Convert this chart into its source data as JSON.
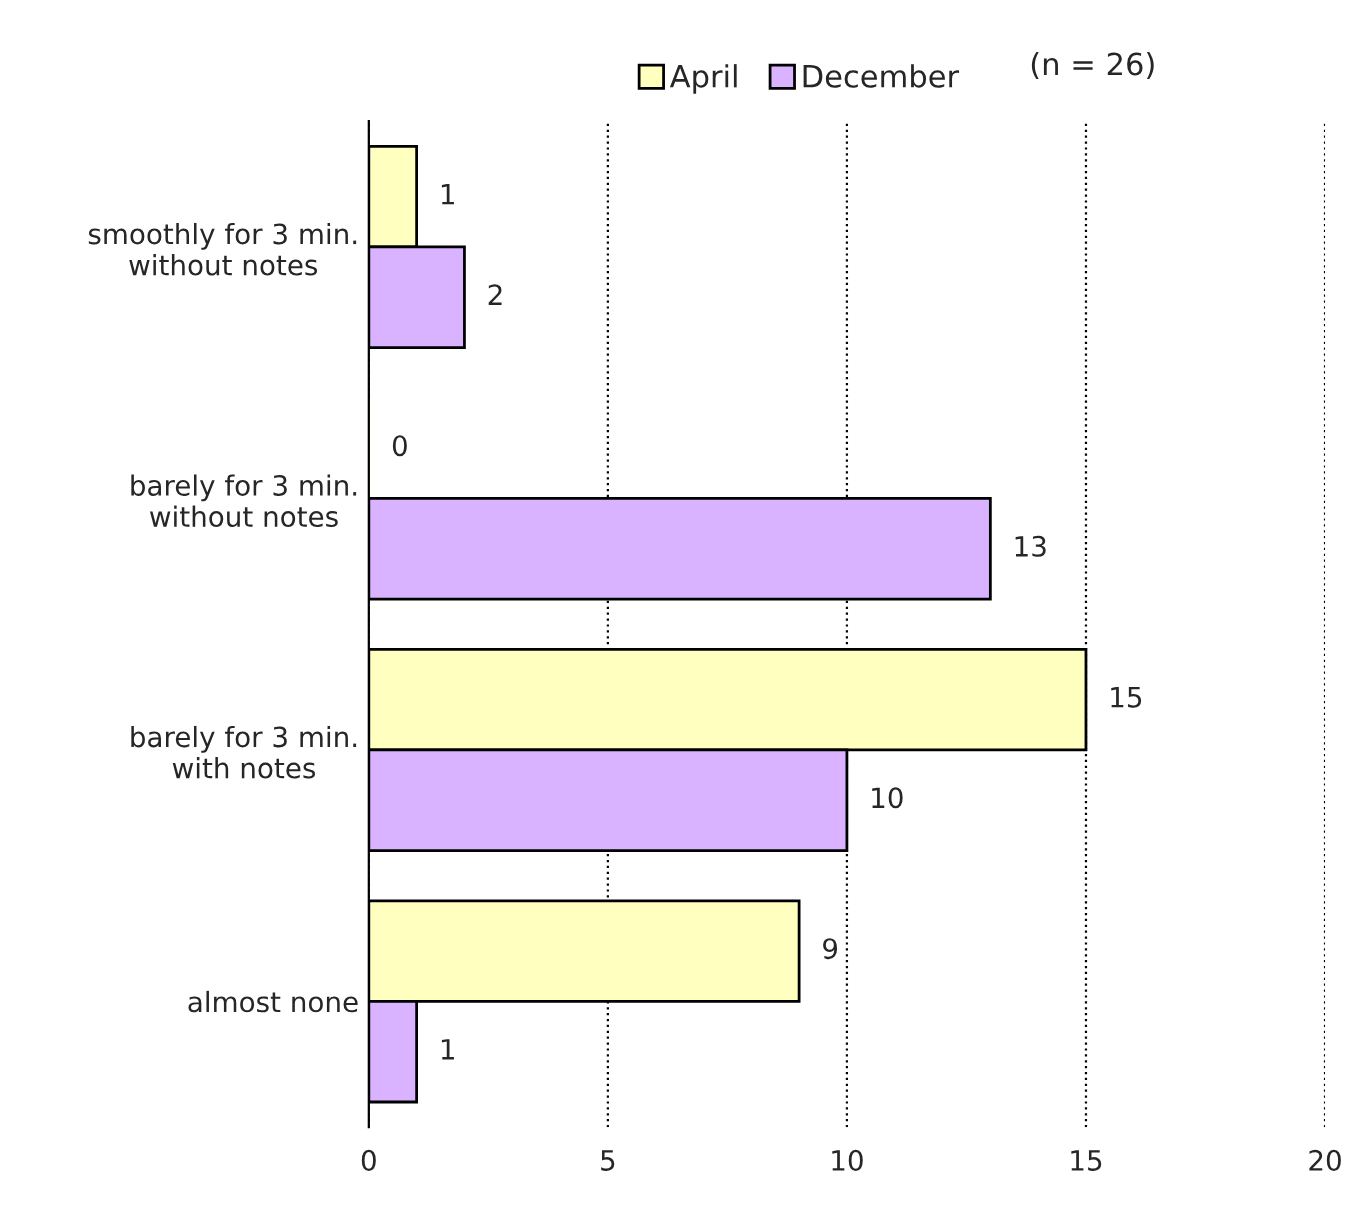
{
  "chart_data": {
    "type": "bar",
    "orientation": "horizontal",
    "categories": [
      "smoothly for 3 min.\nwithout notes",
      "barely for 3 min.\nwithout notes",
      "barely for 3 min.\nwith notes",
      "almost none"
    ],
    "series": [
      {
        "name": "April",
        "color": "#ffffc0",
        "values": [
          1,
          0,
          15,
          9
        ]
      },
      {
        "name": "December",
        "color": "#d9b3ff",
        "values": [
          2,
          13,
          10,
          1
        ]
      }
    ],
    "xlim": [
      0,
      20
    ],
    "xticks": [
      0,
      5,
      10,
      15,
      20
    ],
    "grid": "x",
    "legend": "top",
    "data_labels": true,
    "annotations": [
      "(n = 26)"
    ]
  }
}
